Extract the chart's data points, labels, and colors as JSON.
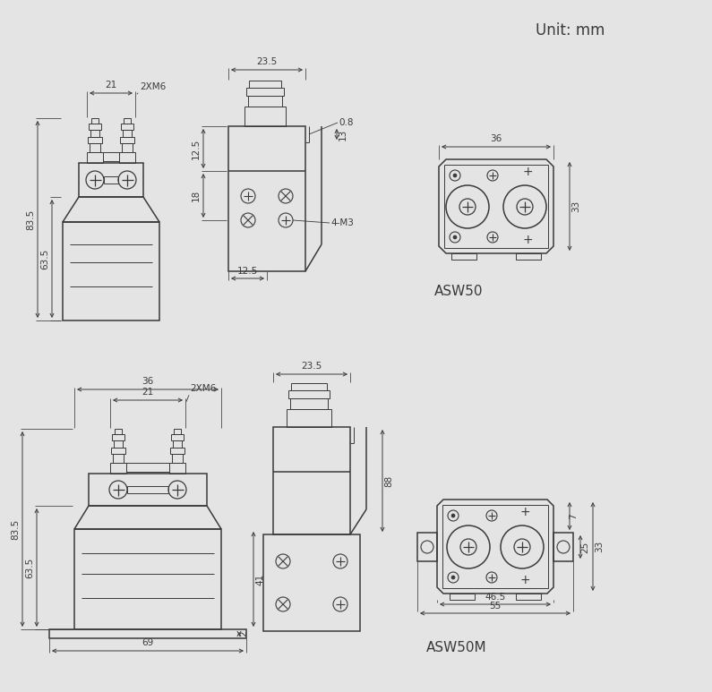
{
  "bg_color": "#e4e4e4",
  "line_color": "#3a3a3a",
  "title": "Unit: mm",
  "model1": "ASW50",
  "model2": "ASW50M",
  "lw_main": 1.1,
  "lw_thin": 0.7,
  "lw_dim": 0.7,
  "fs_dim": 7.5,
  "fs_label": 11
}
